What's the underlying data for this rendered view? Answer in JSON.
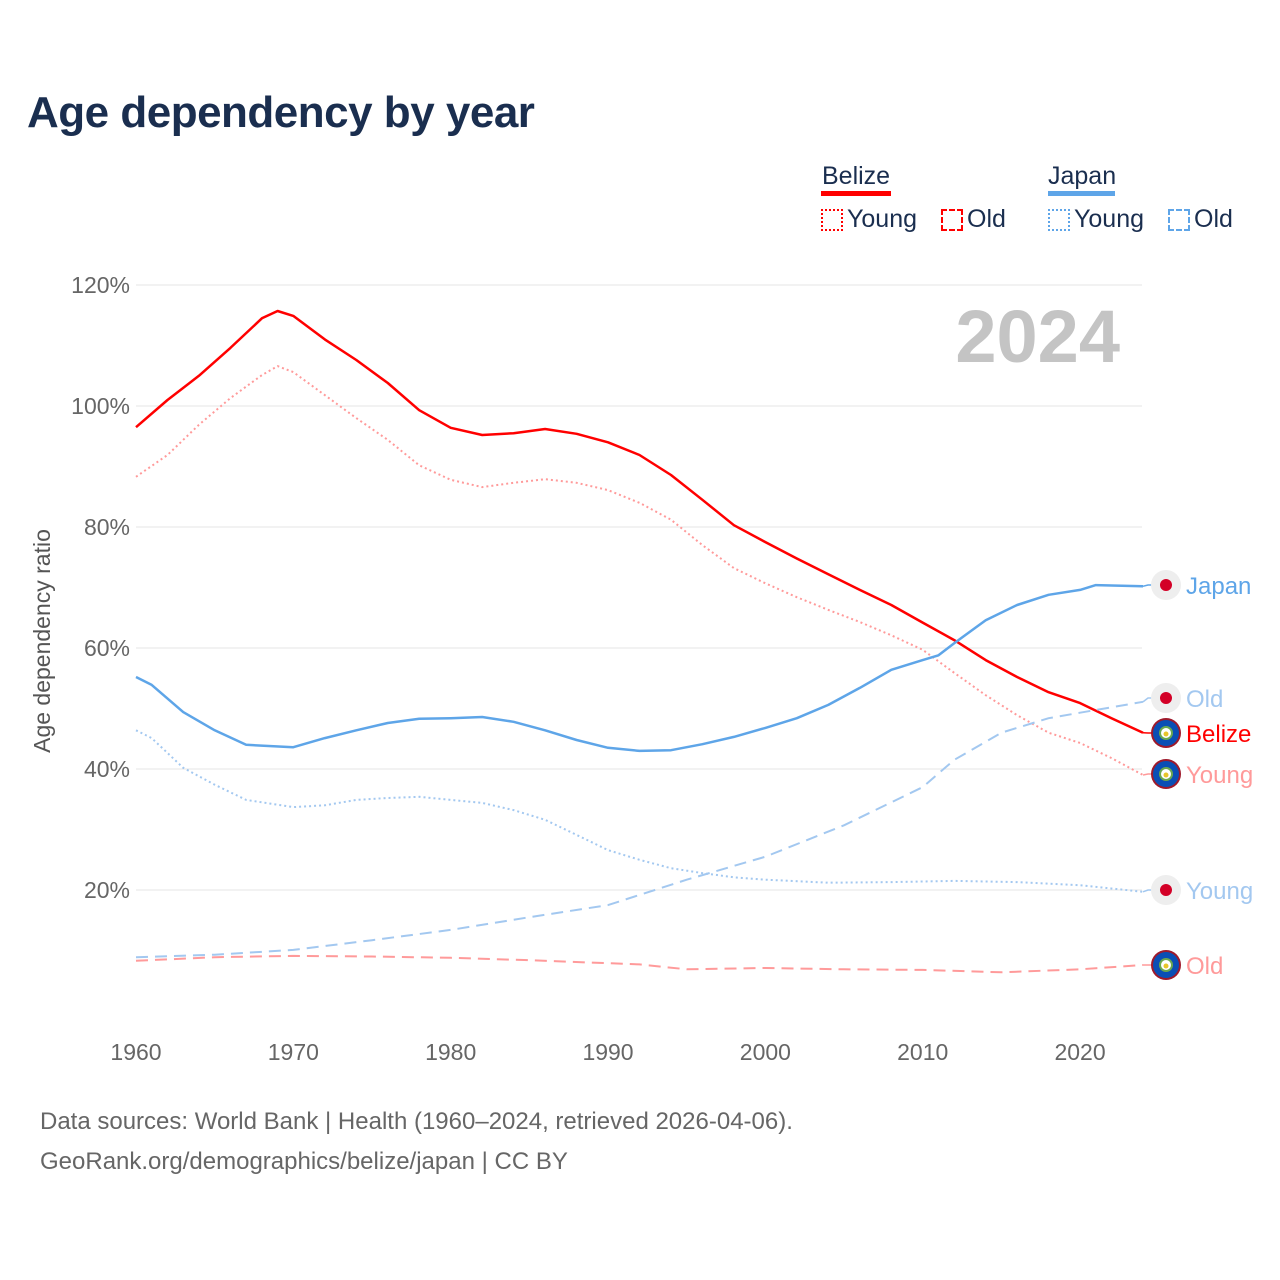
{
  "title": "Age dependency by year",
  "legend": {
    "countries": [
      {
        "name": "Belize",
        "color": "#ff0000",
        "light": "#ff9a9a",
        "young_label": "Young",
        "old_label": "Old"
      },
      {
        "name": "Japan",
        "color": "#5ea5e8",
        "light": "#a3c8f0",
        "young_label": "Young",
        "old_label": "Old"
      }
    ]
  },
  "year_watermark": "2024",
  "source_line1": "Data sources: World Bank | Health (1960–2024, retrieved 2026-04-06).",
  "source_line2": "GeoRank.org/demographics/belize/japan | CC BY",
  "chart_data": {
    "type": "line",
    "title": "Age dependency by year",
    "xlabel": "",
    "ylabel": "Age dependency ratio",
    "xlim": [
      1960,
      2024
    ],
    "ylim": [
      0,
      120
    ],
    "xticks": [
      1960,
      1970,
      1980,
      1990,
      2000,
      2010,
      2020
    ],
    "xtick_labels": [
      "1960",
      "1970",
      "1980",
      "1990",
      "2000",
      "2010",
      "2020"
    ],
    "yticks": [
      20,
      40,
      60,
      80,
      100,
      120
    ],
    "ytick_labels": [
      "20%",
      "40%",
      "60%",
      "80%",
      "100%",
      "120%"
    ],
    "grid": true,
    "series": [
      {
        "name": "Belize",
        "end_label": "Belize",
        "style": "solid",
        "color": "#ff0000",
        "points": [
          [
            1960,
            96.5
          ],
          [
            1962,
            101
          ],
          [
            1964,
            105
          ],
          [
            1966,
            109.6
          ],
          [
            1968,
            114.5
          ],
          [
            1969,
            115.7
          ],
          [
            1970,
            114.9
          ],
          [
            1972,
            111
          ],
          [
            1974,
            107.6
          ],
          [
            1976,
            103.8
          ],
          [
            1978,
            99.3
          ],
          [
            1980,
            96.4
          ],
          [
            1982,
            95.2
          ],
          [
            1984,
            95.5
          ],
          [
            1986,
            96.2
          ],
          [
            1988,
            95.4
          ],
          [
            1990,
            94
          ],
          [
            1992,
            91.9
          ],
          [
            1994,
            88.6
          ],
          [
            1996,
            84.5
          ],
          [
            1998,
            80.3
          ],
          [
            2000,
            77.5
          ],
          [
            2002,
            74.8
          ],
          [
            2004,
            72.2
          ],
          [
            2006,
            69.6
          ],
          [
            2008,
            67.1
          ],
          [
            2010,
            64.2
          ],
          [
            2012,
            61.3
          ],
          [
            2014,
            58
          ],
          [
            2016,
            55.2
          ],
          [
            2018,
            52.7
          ],
          [
            2020,
            50.9
          ],
          [
            2022,
            48.4
          ],
          [
            2024,
            46
          ]
        ]
      },
      {
        "name": "Belize Young",
        "end_label": "Young",
        "style": "dotted",
        "color": "#ff9a9a",
        "points": [
          [
            1960,
            88.3
          ],
          [
            1962,
            91.9
          ],
          [
            1964,
            96.9
          ],
          [
            1966,
            101.3
          ],
          [
            1968,
            105.1
          ],
          [
            1969,
            106.6
          ],
          [
            1970,
            105.6
          ],
          [
            1972,
            101.8
          ],
          [
            1974,
            98
          ],
          [
            1976,
            94.4
          ],
          [
            1978,
            90.2
          ],
          [
            1980,
            87.8
          ],
          [
            1982,
            86.6
          ],
          [
            1984,
            87.3
          ],
          [
            1986,
            87.9
          ],
          [
            1988,
            87.3
          ],
          [
            1990,
            86.1
          ],
          [
            1992,
            84
          ],
          [
            1994,
            81.2
          ],
          [
            1996,
            77
          ],
          [
            1998,
            73.2
          ],
          [
            2000,
            70.7
          ],
          [
            2002,
            68.4
          ],
          [
            2004,
            66.3
          ],
          [
            2006,
            64.3
          ],
          [
            2008,
            62.1
          ],
          [
            2010,
            59.7
          ],
          [
            2012,
            55.9
          ],
          [
            2014,
            52.2
          ],
          [
            2016,
            48.9
          ],
          [
            2018,
            46
          ],
          [
            2020,
            44.3
          ],
          [
            2022,
            41.8
          ],
          [
            2024,
            39
          ]
        ]
      },
      {
        "name": "Belize Old",
        "end_label": "Old",
        "style": "dashed",
        "color": "#ff9a9a",
        "points": [
          [
            1960,
            8.3
          ],
          [
            1965,
            8.9
          ],
          [
            1970,
            9.1
          ],
          [
            1975,
            9.0
          ],
          [
            1980,
            8.8
          ],
          [
            1985,
            8.4
          ],
          [
            1990,
            7.9
          ],
          [
            1992,
            7.7
          ],
          [
            1995,
            6.9
          ],
          [
            2000,
            7.1
          ],
          [
            2005,
            6.9
          ],
          [
            2010,
            6.8
          ],
          [
            2015,
            6.4
          ],
          [
            2020,
            6.9
          ],
          [
            2024,
            7.6
          ]
        ]
      },
      {
        "name": "Japan",
        "end_label": "Japan",
        "style": "solid",
        "color": "#5ea5e8",
        "points": [
          [
            1960,
            55.2
          ],
          [
            1961,
            53.9
          ],
          [
            1963,
            49.4
          ],
          [
            1965,
            46.4
          ],
          [
            1967,
            44
          ],
          [
            1970,
            43.6
          ],
          [
            1972,
            45.1
          ],
          [
            1974,
            46.4
          ],
          [
            1976,
            47.6
          ],
          [
            1978,
            48.3
          ],
          [
            1980,
            48.4
          ],
          [
            1982,
            48.6
          ],
          [
            1984,
            47.8
          ],
          [
            1986,
            46.4
          ],
          [
            1988,
            44.8
          ],
          [
            1990,
            43.5
          ],
          [
            1992,
            43
          ],
          [
            1994,
            43.1
          ],
          [
            1996,
            44.1
          ],
          [
            1998,
            45.3
          ],
          [
            2000,
            46.8
          ],
          [
            2002,
            48.4
          ],
          [
            2004,
            50.6
          ],
          [
            2006,
            53.4
          ],
          [
            2008,
            56.4
          ],
          [
            2010,
            58
          ],
          [
            2011,
            58.8
          ],
          [
            2012,
            60.8
          ],
          [
            2014,
            64.6
          ],
          [
            2016,
            67.1
          ],
          [
            2018,
            68.8
          ],
          [
            2020,
            69.6
          ],
          [
            2021,
            70.4
          ],
          [
            2024,
            70.2
          ]
        ]
      },
      {
        "name": "Japan Young",
        "end_label": "Young",
        "style": "dotted",
        "color": "#a3c8f0",
        "points": [
          [
            1960,
            46.4
          ],
          [
            1961,
            45.1
          ],
          [
            1963,
            40.2
          ],
          [
            1965,
            37.4
          ],
          [
            1967,
            34.9
          ],
          [
            1970,
            33.7
          ],
          [
            1972,
            34
          ],
          [
            1974,
            34.9
          ],
          [
            1976,
            35.2
          ],
          [
            1978,
            35.4
          ],
          [
            1980,
            34.9
          ],
          [
            1982,
            34.4
          ],
          [
            1984,
            33.2
          ],
          [
            1986,
            31.6
          ],
          [
            1988,
            29.1
          ],
          [
            1990,
            26.6
          ],
          [
            1992,
            25
          ],
          [
            1994,
            23.6
          ],
          [
            1996,
            22.8
          ],
          [
            1998,
            22.1
          ],
          [
            2000,
            21.7
          ],
          [
            2004,
            21.2
          ],
          [
            2008,
            21.3
          ],
          [
            2012,
            21.5
          ],
          [
            2016,
            21.3
          ],
          [
            2020,
            20.8
          ],
          [
            2024,
            19.7
          ]
        ]
      },
      {
        "name": "Japan Old",
        "end_label": "Old",
        "style": "dashed",
        "color": "#a3c8f0",
        "points": [
          [
            1960,
            8.9
          ],
          [
            1965,
            9.3
          ],
          [
            1970,
            10.1
          ],
          [
            1975,
            11.7
          ],
          [
            1980,
            13.4
          ],
          [
            1985,
            15.5
          ],
          [
            1990,
            17.5
          ],
          [
            1995,
            21.7
          ],
          [
            2000,
            25.5
          ],
          [
            2005,
            30.7
          ],
          [
            2010,
            37
          ],
          [
            2012,
            41.5
          ],
          [
            2015,
            46
          ],
          [
            2018,
            48.4
          ],
          [
            2020,
            49.3
          ],
          [
            2022,
            50.2
          ],
          [
            2024,
            51.1
          ]
        ]
      }
    ]
  }
}
